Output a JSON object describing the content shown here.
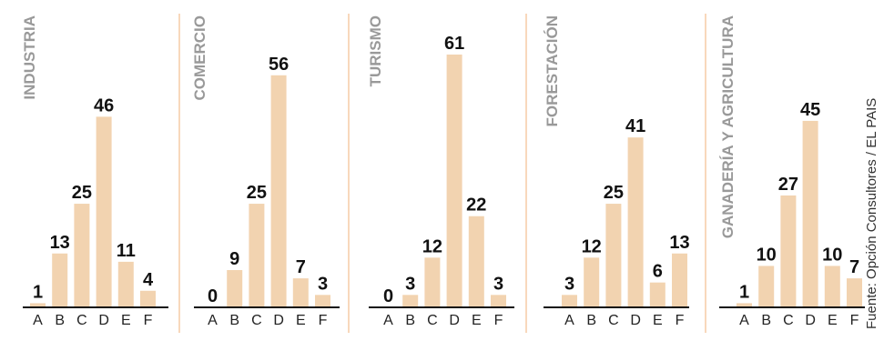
{
  "colors": {
    "bar": "#f2d3b0",
    "divider": "#f0b27a",
    "panel_title": "#999999",
    "value_label": "#111111",
    "tick_label": "#222222",
    "baseline": "#111111",
    "source": "#333333"
  },
  "source": "Fuente: Opción Consultores / EL PAIS",
  "chart_data": [
    {
      "type": "bar",
      "title": "INDUSTRIA",
      "categories": [
        "A",
        "B",
        "C",
        "D",
        "E",
        "F"
      ],
      "values": [
        1,
        13,
        25,
        46,
        11,
        4
      ],
      "ylim": [
        0,
        61
      ]
    },
    {
      "type": "bar",
      "title": "COMERCIO",
      "categories": [
        "A",
        "B",
        "C",
        "D",
        "E",
        "F"
      ],
      "values": [
        0,
        9,
        25,
        56,
        7,
        3
      ],
      "ylim": [
        0,
        61
      ]
    },
    {
      "type": "bar",
      "title": "TURISMO",
      "categories": [
        "A",
        "B",
        "C",
        "D",
        "E",
        "F"
      ],
      "values": [
        0,
        3,
        12,
        61,
        22,
        3
      ],
      "ylim": [
        0,
        61
      ]
    },
    {
      "type": "bar",
      "title": "FORESTACIÓN",
      "categories": [
        "A",
        "B",
        "C",
        "D",
        "E",
        "F"
      ],
      "values": [
        3,
        12,
        25,
        41,
        6,
        13
      ],
      "ylim": [
        0,
        61
      ]
    },
    {
      "type": "bar",
      "title": "GANADERÍA Y AGRICULTURA",
      "categories": [
        "A",
        "B",
        "C",
        "D",
        "E",
        "F"
      ],
      "values": [
        1,
        10,
        27,
        45,
        10,
        7
      ],
      "ylim": [
        0,
        61
      ]
    }
  ]
}
